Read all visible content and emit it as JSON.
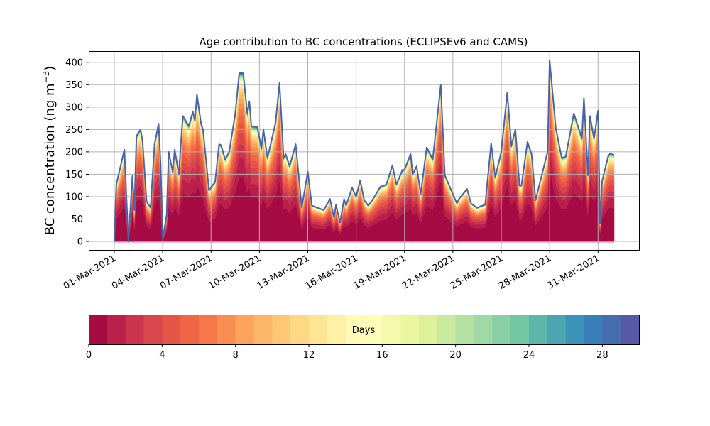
{
  "chart_data": {
    "type": "area",
    "stacked": true,
    "title": "Age contribution to BC concentrations (ECLIPSEv6 and CAMS)",
    "xlabel": "",
    "ylabel": "BC concentration (ng m",
    "ylabel_unit_sup": "−3",
    "ylabel_close": ")",
    "xlim": [
      "2021-02-27T10:00",
      "2021-04-02T13:00"
    ],
    "ylim": [
      -19,
      425
    ],
    "yticks": [
      0,
      50,
      100,
      150,
      200,
      250,
      300,
      350,
      400
    ],
    "xticks": [
      "2021-03-01",
      "2021-03-04",
      "2021-03-07",
      "2021-03-10",
      "2021-03-13",
      "2021-03-16",
      "2021-03-19",
      "2021-03-22",
      "2021-03-25",
      "2021-03-28",
      "2021-03-31"
    ],
    "xtick_labels": [
      "01-Mar-2021",
      "04-Mar-2021",
      "07-Mar-2021",
      "10-Mar-2021",
      "13-Mar-2021",
      "16-Mar-2021",
      "19-Mar-2021",
      "22-Mar-2021",
      "25-Mar-2021",
      "28-Mar-2021",
      "31-Mar-2021"
    ],
    "grid": true,
    "colormap": "Spectral",
    "colormap_anchors": [
      "#9e0142",
      "#d53e4f",
      "#f46d43",
      "#fdae61",
      "#fee08b",
      "#ffffbf",
      "#e6f598",
      "#abdda4",
      "#66c2a5",
      "#3288bd",
      "#5e4fa2"
    ],
    "outline_color": "#4a62a8",
    "baseline_color": "#e377c2",
    "colorbar": {
      "label": "Days",
      "range": [
        0,
        30
      ],
      "bins": 30,
      "ticks": [
        0,
        4,
        8,
        12,
        16,
        20,
        24,
        28
      ],
      "orientation": "horizontal",
      "placement": "bottom"
    },
    "approx_age_share": [
      0.4,
      0.12,
      0.08,
      0.07,
      0.06,
      0.05,
      0.04,
      0.035,
      0.03,
      0.025,
      0.02,
      0.018,
      0.015,
      0.012,
      0.01,
      0.008,
      0.007,
      0.006,
      0.005,
      0.005,
      0.004,
      0.004,
      0.003,
      0.003,
      0.003,
      0.002,
      0.002,
      0.002,
      0.002,
      0.002
    ],
    "total": [
      [
        "2021-03-01T00",
        0
      ],
      [
        "2021-03-01T03",
        127
      ],
      [
        "2021-03-01T15",
        205
      ],
      [
        "2021-03-01T21",
        0
      ],
      [
        "2021-03-02T03",
        146
      ],
      [
        "2021-03-02T06",
        70
      ],
      [
        "2021-03-02T09",
        235
      ],
      [
        "2021-03-02T15",
        250
      ],
      [
        "2021-03-02T18",
        225
      ],
      [
        "2021-03-03T00",
        90
      ],
      [
        "2021-03-03T06",
        75
      ],
      [
        "2021-03-03T12",
        217
      ],
      [
        "2021-03-03T18",
        263
      ],
      [
        "2021-03-03T21",
        170
      ],
      [
        "2021-03-04T00",
        5
      ],
      [
        "2021-03-04T06",
        60
      ],
      [
        "2021-03-04T09",
        200
      ],
      [
        "2021-03-04T15",
        155
      ],
      [
        "2021-03-04T18",
        205
      ],
      [
        "2021-03-05T00",
        150
      ],
      [
        "2021-03-05T06",
        280
      ],
      [
        "2021-03-05T15",
        258
      ],
      [
        "2021-03-05T21",
        290
      ],
      [
        "2021-03-06T00",
        270
      ],
      [
        "2021-03-06T03",
        328
      ],
      [
        "2021-03-06T09",
        265
      ],
      [
        "2021-03-06T12",
        250
      ],
      [
        "2021-03-06T21",
        114
      ],
      [
        "2021-03-07T03",
        127
      ],
      [
        "2021-03-07T06",
        132
      ],
      [
        "2021-03-07T12",
        217
      ],
      [
        "2021-03-07T15",
        215
      ],
      [
        "2021-03-07T21",
        183
      ],
      [
        "2021-03-08T03",
        200
      ],
      [
        "2021-03-08T12",
        285
      ],
      [
        "2021-03-08T18",
        376
      ],
      [
        "2021-03-09T00",
        376
      ],
      [
        "2021-03-09T06",
        285
      ],
      [
        "2021-03-09T09",
        313
      ],
      [
        "2021-03-09T12",
        258
      ],
      [
        "2021-03-09T21",
        255
      ],
      [
        "2021-03-10T03",
        207
      ],
      [
        "2021-03-10T06",
        250
      ],
      [
        "2021-03-10T12",
        186
      ],
      [
        "2021-03-11T00",
        265
      ],
      [
        "2021-03-11T06",
        354
      ],
      [
        "2021-03-11T12",
        186
      ],
      [
        "2021-03-11T15",
        195
      ],
      [
        "2021-03-11T21",
        168
      ],
      [
        "2021-03-12T06",
        217
      ],
      [
        "2021-03-12T15",
        75
      ],
      [
        "2021-03-13T00",
        156
      ],
      [
        "2021-03-13T06",
        80
      ],
      [
        "2021-03-13T15",
        75
      ],
      [
        "2021-03-14T00",
        70
      ],
      [
        "2021-03-14T09",
        95
      ],
      [
        "2021-03-14T15",
        53
      ],
      [
        "2021-03-14T18",
        82
      ],
      [
        "2021-03-15T00",
        42
      ],
      [
        "2021-03-15T06",
        95
      ],
      [
        "2021-03-15T09",
        80
      ],
      [
        "2021-03-15T18",
        120
      ],
      [
        "2021-03-16T00",
        100
      ],
      [
        "2021-03-16T06",
        136
      ],
      [
        "2021-03-16T12",
        92
      ],
      [
        "2021-03-16T18",
        80
      ],
      [
        "2021-03-17T00",
        92
      ],
      [
        "2021-03-17T12",
        122
      ],
      [
        "2021-03-17T21",
        127
      ],
      [
        "2021-03-18T06",
        170
      ],
      [
        "2021-03-18T12",
        127
      ],
      [
        "2021-03-18T21",
        160
      ],
      [
        "2021-03-19T00",
        160
      ],
      [
        "2021-03-19T09",
        195
      ],
      [
        "2021-03-19T12",
        150
      ],
      [
        "2021-03-19T18",
        168
      ],
      [
        "2021-03-20T00",
        106
      ],
      [
        "2021-03-20T09",
        210
      ],
      [
        "2021-03-20T18",
        183
      ],
      [
        "2021-03-21T06",
        349
      ],
      [
        "2021-03-21T12",
        148
      ],
      [
        "2021-03-22T03",
        95
      ],
      [
        "2021-03-22T06",
        85
      ],
      [
        "2021-03-22T09",
        95
      ],
      [
        "2021-03-22T21",
        117
      ],
      [
        "2021-03-23T03",
        85
      ],
      [
        "2021-03-23T12",
        75
      ],
      [
        "2021-03-23T18",
        79
      ],
      [
        "2021-03-24T00",
        82
      ],
      [
        "2021-03-24T09",
        219
      ],
      [
        "2021-03-24T15",
        143
      ],
      [
        "2021-03-25T00",
        200
      ],
      [
        "2021-03-25T09",
        333
      ],
      [
        "2021-03-25T15",
        213
      ],
      [
        "2021-03-25T21",
        250
      ],
      [
        "2021-03-26T03",
        125
      ],
      [
        "2021-03-26T06",
        125
      ],
      [
        "2021-03-26T15",
        222
      ],
      [
        "2021-03-26T21",
        196
      ],
      [
        "2021-03-27T03",
        92
      ],
      [
        "2021-03-27T18",
        183
      ],
      [
        "2021-03-27T21",
        200
      ],
      [
        "2021-03-28T00",
        405
      ],
      [
        "2021-03-28T09",
        254
      ],
      [
        "2021-03-28T18",
        186
      ],
      [
        "2021-03-29T00",
        190
      ],
      [
        "2021-03-29T12",
        286
      ],
      [
        "2021-03-30T00",
        230
      ],
      [
        "2021-03-30T03",
        320
      ],
      [
        "2021-03-30T09",
        148
      ],
      [
        "2021-03-30T12",
        280
      ],
      [
        "2021-03-30T18",
        230
      ],
      [
        "2021-03-31T00",
        292
      ],
      [
        "2021-03-31T03",
        40
      ],
      [
        "2021-03-31T06",
        135
      ],
      [
        "2021-03-31T15",
        190
      ],
      [
        "2021-03-31T18",
        196
      ],
      [
        "2021-04-01T00",
        193
      ]
    ]
  }
}
